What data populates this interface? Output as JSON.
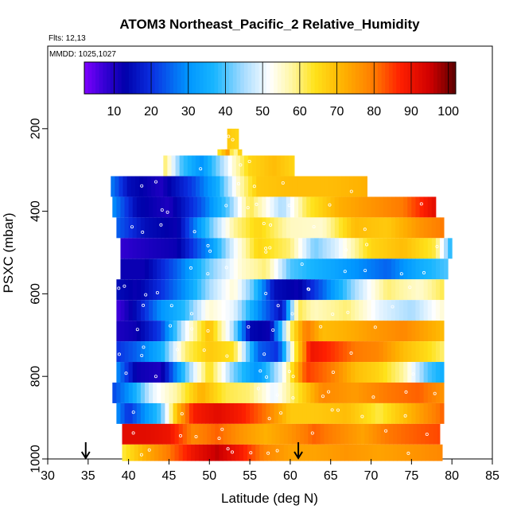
{
  "chart_data": {
    "type": "heatmap",
    "title": "ATOM3 Northeast_Pacific_2 Relative_Humidity",
    "flights_label": "Flts: 12,13",
    "mmdd_label": "MMDD: 1025,1027",
    "xlabel": "Latitude (deg N)",
    "ylabel": "PSXC (mbar)",
    "xlim": [
      30,
      85
    ],
    "ylim": [
      1000,
      0
    ],
    "x_ticks": [
      30,
      35,
      40,
      45,
      50,
      55,
      60,
      65,
      70,
      75,
      80,
      85
    ],
    "y_ticks": [
      200,
      400,
      600,
      800,
      1000
    ],
    "colorbar": {
      "min": 2,
      "max": 102,
      "ticks": [
        10,
        20,
        30,
        40,
        50,
        60,
        70,
        80,
        90,
        100
      ],
      "stops": [
        {
          "v": 2,
          "c": "#7f00ff"
        },
        {
          "v": 7,
          "c": "#3a00d8"
        },
        {
          "v": 13,
          "c": "#0000aa"
        },
        {
          "v": 20,
          "c": "#0a2ee0"
        },
        {
          "v": 30,
          "c": "#0096ff"
        },
        {
          "v": 37,
          "c": "#18b6ff"
        },
        {
          "v": 45,
          "c": "#a9dcff"
        },
        {
          "v": 52,
          "c": "#ffffff"
        },
        {
          "v": 58,
          "c": "#fff6a0"
        },
        {
          "v": 64,
          "c": "#ffe21a"
        },
        {
          "v": 72,
          "c": "#ffb000"
        },
        {
          "v": 80,
          "c": "#ff7a00"
        },
        {
          "v": 87,
          "c": "#ff2000"
        },
        {
          "v": 95,
          "c": "#d00000"
        },
        {
          "v": 102,
          "c": "#5a0000"
        }
      ]
    },
    "bands": [
      {
        "p0": 200,
        "p1": 250,
        "x0": 52.2,
        "x1": 53.6,
        "knots": [
          [
            52.2,
            68
          ],
          [
            53.6,
            66
          ]
        ]
      },
      {
        "p0": 250,
        "p1": 300,
        "x0": 51.0,
        "x1": 54.0,
        "knots": [
          [
            51.0,
            62
          ],
          [
            52.3,
            75
          ],
          [
            53.0,
            55
          ],
          [
            54.0,
            70
          ]
        ]
      },
      {
        "p0": 265,
        "p1": 315,
        "x0": 44.3,
        "x1": 60.5,
        "knots": [
          [
            44.3,
            62
          ],
          [
            46.5,
            40
          ],
          [
            49.0,
            30
          ],
          [
            51.5,
            45
          ],
          [
            53.0,
            55
          ],
          [
            55.0,
            66
          ],
          [
            58.0,
            70
          ],
          [
            60.5,
            66
          ]
        ]
      },
      {
        "p0": 315,
        "p1": 365,
        "x0": 37.8,
        "x1": 69.5,
        "knots": [
          [
            37.8,
            28
          ],
          [
            40.0,
            15
          ],
          [
            44.0,
            10
          ],
          [
            48.0,
            22
          ],
          [
            51.0,
            35
          ],
          [
            53.5,
            55
          ],
          [
            56.0,
            68
          ],
          [
            60.0,
            70
          ],
          [
            65.0,
            70
          ],
          [
            69.5,
            72
          ]
        ]
      },
      {
        "p0": 365,
        "p1": 415,
        "x0": 38.0,
        "x1": 78.0,
        "knots": [
          [
            38.0,
            30
          ],
          [
            41.0,
            14
          ],
          [
            45.0,
            10
          ],
          [
            49.0,
            24
          ],
          [
            52.5,
            42
          ],
          [
            55.0,
            62
          ],
          [
            59.0,
            45
          ],
          [
            62.0,
            62
          ],
          [
            66.0,
            72
          ],
          [
            70.0,
            76
          ],
          [
            74.0,
            80
          ],
          [
            78.0,
            92
          ]
        ]
      },
      {
        "p0": 415,
        "p1": 465,
        "x0": 38.5,
        "x1": 79.0,
        "knots": [
          [
            38.5,
            25
          ],
          [
            42.0,
            15
          ],
          [
            46.0,
            12
          ],
          [
            50.0,
            40
          ],
          [
            53.0,
            58
          ],
          [
            56.0,
            66
          ],
          [
            60.0,
            56
          ],
          [
            64.0,
            55
          ],
          [
            68.0,
            70
          ],
          [
            72.0,
            68
          ],
          [
            76.0,
            76
          ],
          [
            79.0,
            80
          ]
        ]
      },
      {
        "p0": 465,
        "p1": 515,
        "x0": 39.0,
        "x1": 80.0,
        "knots": [
          [
            39.0,
            8
          ],
          [
            42.0,
            10
          ],
          [
            46.0,
            12
          ],
          [
            50.0,
            30
          ],
          [
            53.0,
            50
          ],
          [
            56.0,
            66
          ],
          [
            60.0,
            60
          ],
          [
            63.0,
            42
          ],
          [
            66.0,
            50
          ],
          [
            70.0,
            66
          ],
          [
            74.0,
            70
          ],
          [
            78.0,
            62
          ],
          [
            80.0,
            35
          ]
        ]
      },
      {
        "p0": 515,
        "p1": 565,
        "x0": 39.0,
        "x1": 79.5,
        "knots": [
          [
            39.0,
            12
          ],
          [
            42.0,
            12
          ],
          [
            46.0,
            25
          ],
          [
            50.0,
            42
          ],
          [
            54.0,
            55
          ],
          [
            57.0,
            60
          ],
          [
            60.0,
            40
          ],
          [
            64.0,
            35
          ],
          [
            68.0,
            30
          ],
          [
            72.0,
            25
          ],
          [
            76.0,
            35
          ],
          [
            79.5,
            40
          ]
        ]
      },
      {
        "p0": 565,
        "p1": 615,
        "x0": 38.5,
        "x1": 79.0,
        "knots": [
          [
            38.5,
            15
          ],
          [
            41.0,
            12
          ],
          [
            44.0,
            20
          ],
          [
            47.0,
            30
          ],
          [
            50.0,
            45
          ],
          [
            53.0,
            55
          ],
          [
            55.5,
            40
          ],
          [
            58.0,
            15
          ],
          [
            61.0,
            12
          ],
          [
            64.0,
            25
          ],
          [
            68.0,
            45
          ],
          [
            72.0,
            60
          ],
          [
            76.0,
            55
          ],
          [
            79.0,
            62
          ]
        ]
      },
      {
        "p0": 615,
        "p1": 665,
        "x0": 38.5,
        "x1": 79.0,
        "knots": [
          [
            38.5,
            6
          ],
          [
            41.0,
            15
          ],
          [
            44.0,
            30
          ],
          [
            47.0,
            38
          ],
          [
            50.0,
            55
          ],
          [
            53.0,
            50
          ],
          [
            56.0,
            30
          ],
          [
            59.0,
            15
          ],
          [
            61.0,
            62
          ],
          [
            63.0,
            56
          ],
          [
            67.0,
            60
          ],
          [
            71.0,
            50
          ],
          [
            75.0,
            45
          ],
          [
            79.0,
            55
          ]
        ]
      },
      {
        "p0": 665,
        "p1": 715,
        "x0": 38.5,
        "x1": 79.0,
        "knots": [
          [
            38.5,
            10
          ],
          [
            41.0,
            12
          ],
          [
            44.0,
            22
          ],
          [
            47.0,
            50
          ],
          [
            50.0,
            70
          ],
          [
            53.0,
            45
          ],
          [
            55.0,
            14
          ],
          [
            57.5,
            12
          ],
          [
            60.0,
            60
          ],
          [
            62.0,
            80
          ],
          [
            64.0,
            70
          ],
          [
            67.0,
            72
          ],
          [
            70.0,
            75
          ],
          [
            74.0,
            78
          ],
          [
            79.0,
            70
          ]
        ]
      },
      {
        "p0": 715,
        "p1": 765,
        "x0": 38.5,
        "x1": 79.0,
        "knots": [
          [
            38.5,
            20
          ],
          [
            41.0,
            25
          ],
          [
            44.0,
            35
          ],
          [
            47.0,
            60
          ],
          [
            50.0,
            68
          ],
          [
            53.0,
            64
          ],
          [
            56.0,
            25
          ],
          [
            58.5,
            20
          ],
          [
            60.5,
            60
          ],
          [
            62.5,
            90
          ],
          [
            65.0,
            86
          ],
          [
            68.0,
            80
          ],
          [
            71.0,
            78
          ],
          [
            74.0,
            70
          ],
          [
            77.0,
            65
          ],
          [
            79.0,
            60
          ]
        ]
      },
      {
        "p0": 765,
        "p1": 815,
        "x0": 38.5,
        "x1": 79.0,
        "knots": [
          [
            38.5,
            30
          ],
          [
            41.0,
            12
          ],
          [
            44.0,
            10
          ],
          [
            47.0,
            40
          ],
          [
            50.0,
            65
          ],
          [
            53.0,
            42
          ],
          [
            56.0,
            30
          ],
          [
            59.0,
            50
          ],
          [
            62.0,
            85
          ],
          [
            65.0,
            80
          ],
          [
            68.0,
            70
          ],
          [
            71.0,
            66
          ],
          [
            74.0,
            58
          ],
          [
            77.0,
            40
          ],
          [
            79.0,
            35
          ]
        ]
      },
      {
        "p0": 815,
        "p1": 865,
        "x0": 38.0,
        "x1": 79.0,
        "knots": [
          [
            38.0,
            22
          ],
          [
            40.0,
            30
          ],
          [
            43.0,
            50
          ],
          [
            46.0,
            58
          ],
          [
            49.0,
            72
          ],
          [
            52.0,
            62
          ],
          [
            55.0,
            60
          ],
          [
            58.0,
            50
          ],
          [
            61.0,
            64
          ],
          [
            64.0,
            78
          ],
          [
            68.0,
            75
          ],
          [
            72.0,
            80
          ],
          [
            76.0,
            82
          ],
          [
            79.0,
            76
          ]
        ]
      },
      {
        "p0": 865,
        "p1": 915,
        "x0": 38.5,
        "x1": 79.0,
        "knots": [
          [
            38.5,
            30
          ],
          [
            40.0,
            20
          ],
          [
            42.0,
            30
          ],
          [
            44.0,
            40
          ],
          [
            46.0,
            70
          ],
          [
            48.0,
            88
          ],
          [
            51.0,
            92
          ],
          [
            54.0,
            88
          ],
          [
            57.0,
            80
          ],
          [
            60.0,
            68
          ],
          [
            63.0,
            68
          ],
          [
            67.0,
            70
          ],
          [
            71.0,
            62
          ],
          [
            75.0,
            72
          ],
          [
            79.0,
            82
          ]
        ]
      },
      {
        "p0": 915,
        "p1": 965,
        "x0": 39.2,
        "x1": 78.5,
        "knots": [
          [
            39.2,
            92
          ],
          [
            42.0,
            92
          ],
          [
            45.0,
            90
          ],
          [
            48.0,
            78
          ],
          [
            51.0,
            82
          ],
          [
            54.0,
            76
          ],
          [
            57.0,
            72
          ],
          [
            60.0,
            76
          ],
          [
            63.0,
            82
          ],
          [
            66.0,
            78
          ],
          [
            69.0,
            74
          ],
          [
            72.0,
            80
          ],
          [
            75.0,
            82
          ],
          [
            78.5,
            84
          ]
        ]
      },
      {
        "p0": 965,
        "p1": 1005,
        "x0": 39.2,
        "x1": 78.8,
        "knots": [
          [
            39.2,
            62
          ],
          [
            42.0,
            72
          ],
          [
            45.0,
            80
          ],
          [
            48.0,
            90
          ],
          [
            51.0,
            96
          ],
          [
            54.0,
            88
          ],
          [
            57.0,
            78
          ],
          [
            60.0,
            74
          ],
          [
            63.0,
            74
          ],
          [
            67.0,
            76
          ],
          [
            71.0,
            74
          ],
          [
            75.0,
            76
          ],
          [
            78.8,
            78
          ]
        ]
      }
    ],
    "arrows_lat": [
      34.7,
      61.0
    ]
  }
}
